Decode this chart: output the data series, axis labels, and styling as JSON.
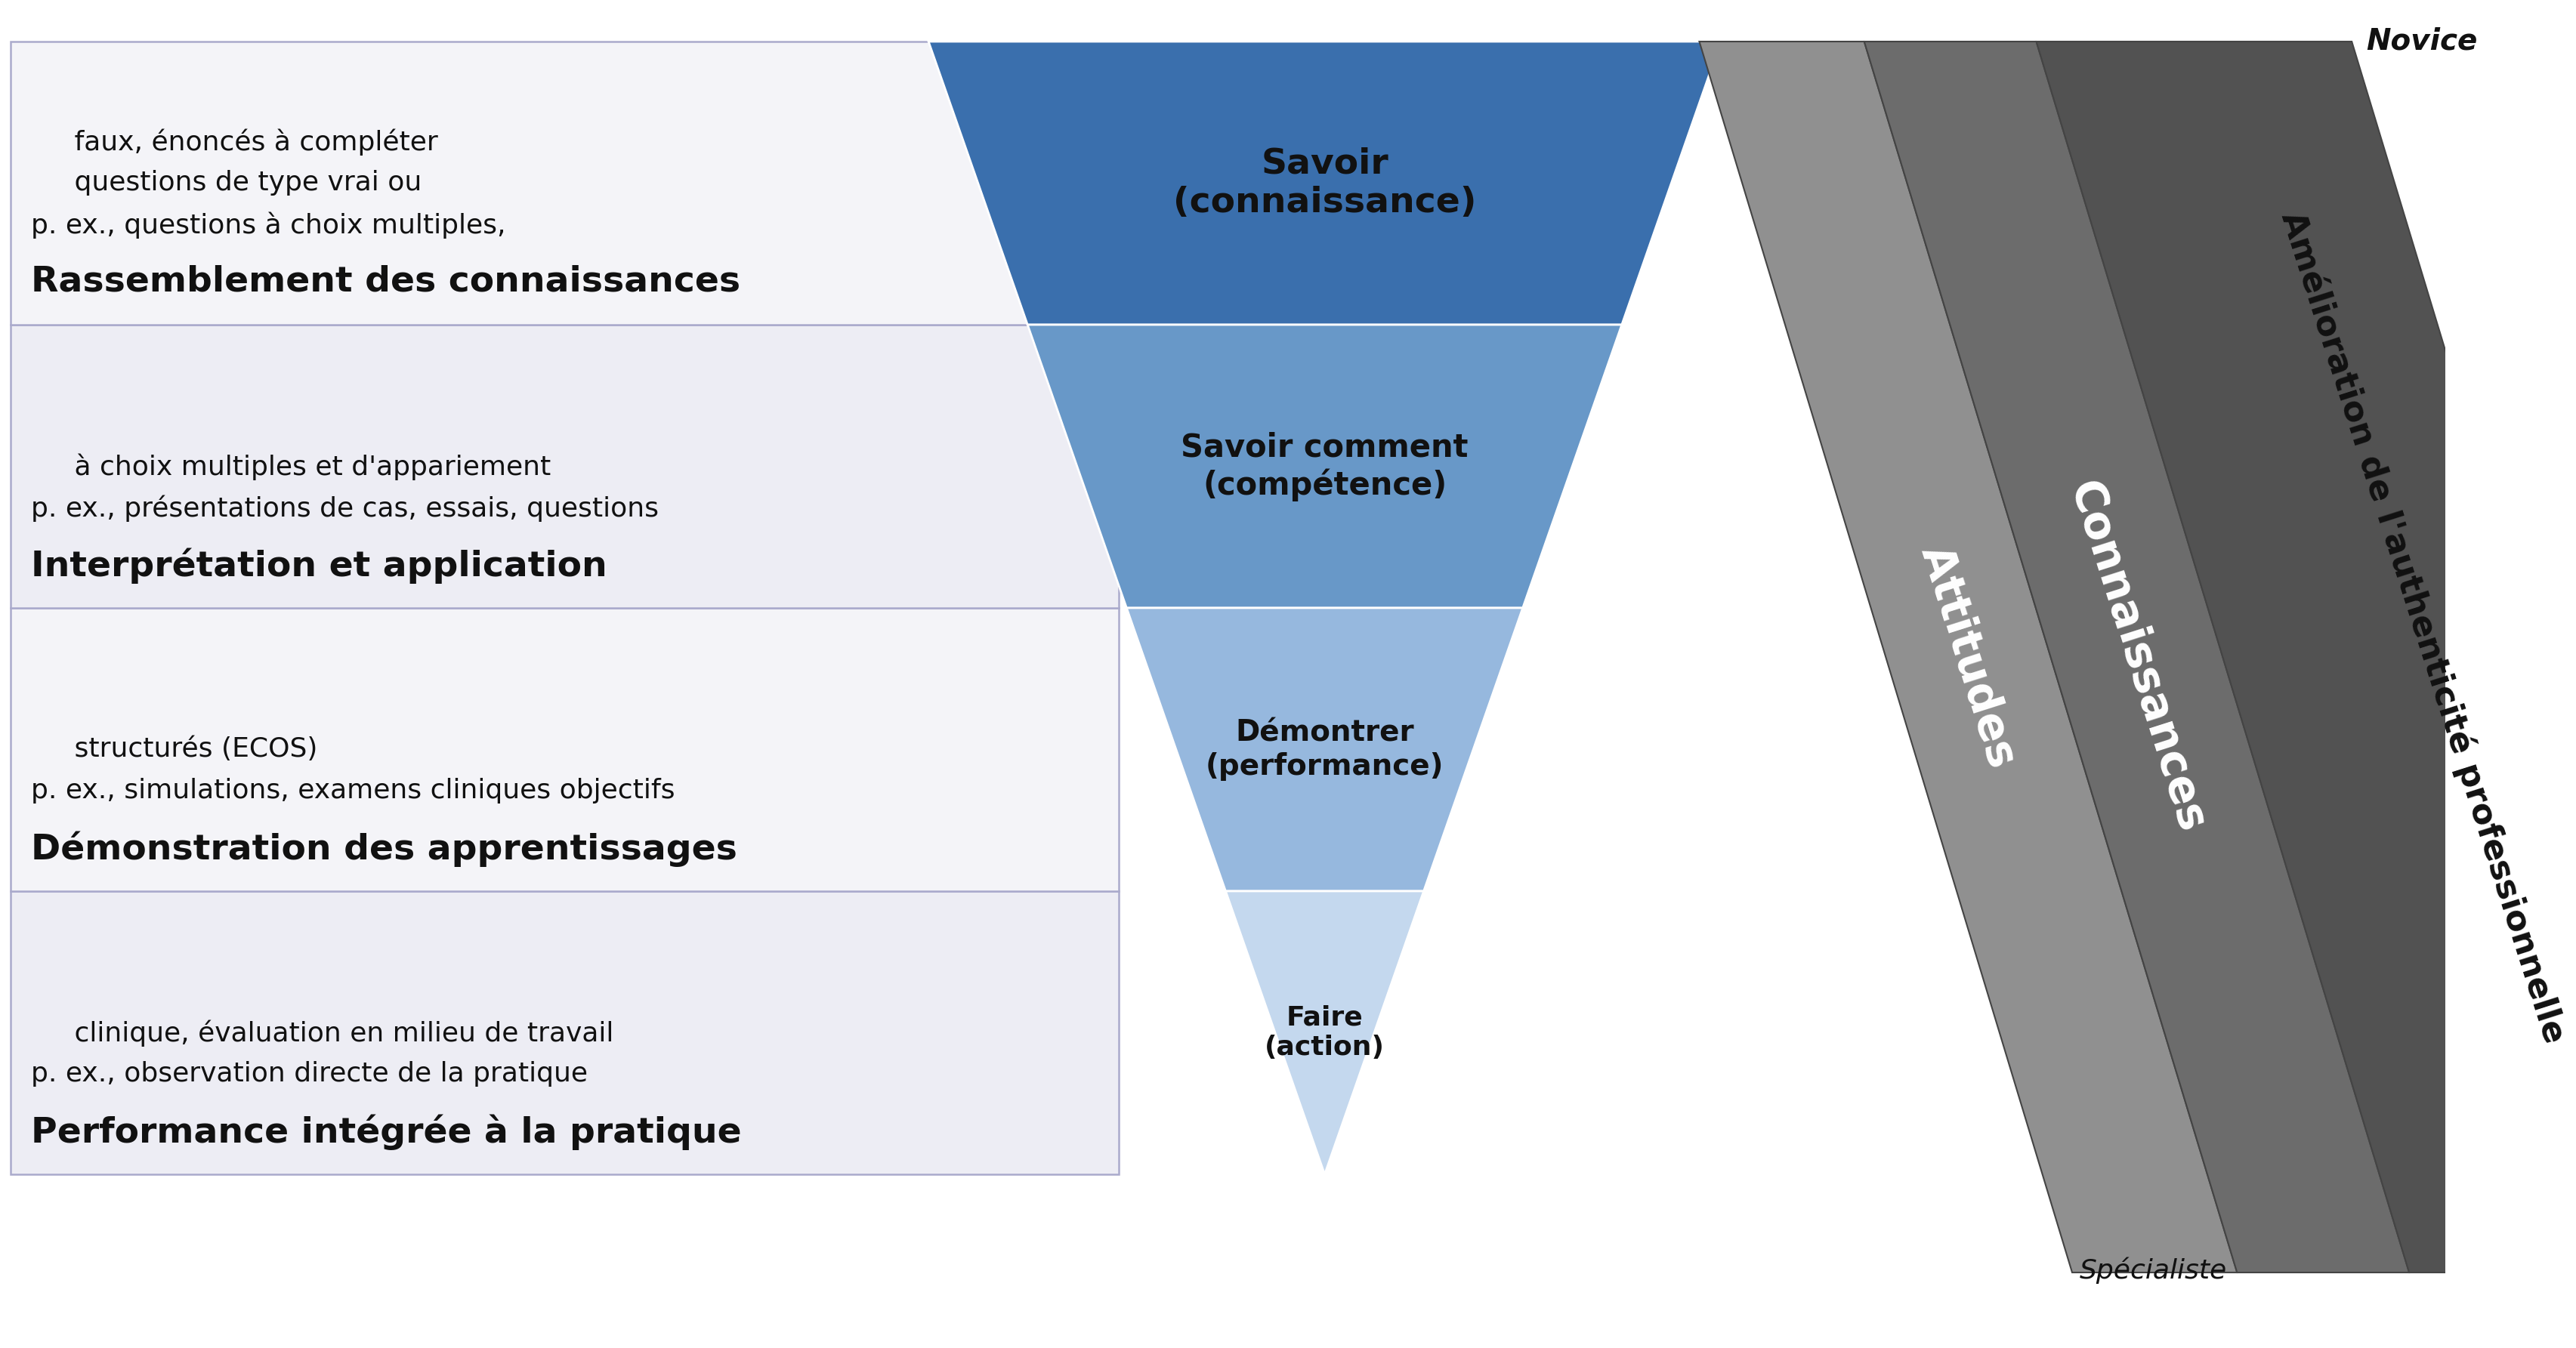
{
  "bg_color": "#ffffff",
  "rows": [
    {
      "title": "Performance intégrée à la pratique",
      "subtitle_lines": [
        "p. ex., observation directe de la pratique",
        "     clinique, évaluation en milieu de travail"
      ]
    },
    {
      "title": "Démonstration des apprentissages",
      "subtitle_lines": [
        "p. ex., simulations, examens cliniques objectifs",
        "     structurés (ECOS)"
      ]
    },
    {
      "title": "Interprétation et application",
      "subtitle_lines": [
        "p. ex., présentations de cas, essais, questions",
        "     à choix multiples et d'appariement"
      ]
    },
    {
      "title": "Rassemblement des connaissances",
      "subtitle_lines": [
        "p. ex., questions à choix multiples,",
        "     questions de type vrai ou",
        "     faux, énoncés à compléter"
      ]
    }
  ],
  "pyramid_colors": [
    "#3a6fad",
    "#6898c8",
    "#96b8de",
    "#c4d8ee"
  ],
  "pyramid_labels": [
    "Savoir\n(connaissance)",
    "Savoir comment\n(compétence)",
    "Démontrer\n(performance)",
    "Faire\n(action)"
  ],
  "panel_colors": [
    "#8c8c8c",
    "#6e6e6e",
    "#525252"
  ],
  "panel_labels": [
    "Attitudes",
    "Connaissances",
    ""
  ],
  "arrow_label": "Amélioration de l'authenticité professionnelle",
  "specialist_label": "Spécialiste",
  "novice_label": "Novice",
  "row_bg_colors": [
    "#ededf4",
    "#f4f4f8",
    "#ededf4",
    "#f4f4f8"
  ]
}
